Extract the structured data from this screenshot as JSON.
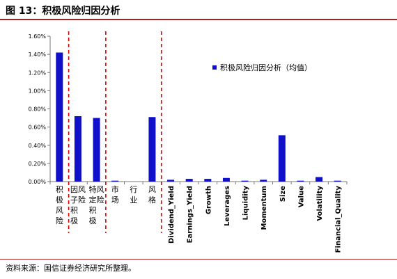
{
  "header": {
    "title": "图 13：积极风险归因分析"
  },
  "source": "资料来源：国信证券经济研究所整理。",
  "chart_data": {
    "type": "bar",
    "title": "",
    "xlabel": "",
    "ylabel": "",
    "ylim": [
      0,
      0.016
    ],
    "yticks": [
      "0.00%",
      "0.20%",
      "0.40%",
      "0.60%",
      "0.80%",
      "1.00%",
      "1.20%",
      "1.40%",
      "1.60%"
    ],
    "grid": false,
    "legend_position": "upper-right",
    "categories": [
      "积极风险",
      "因子积极风险",
      "特定积极风险",
      "市场",
      "行业",
      "风格",
      "Dividend_Yield",
      "Earnings_Yield",
      "Growth",
      "Leverages",
      "Liquidity",
      "Momentum",
      "Size",
      "Value",
      "Volatility",
      "Financial_Quality"
    ],
    "vertical_categories": [
      "积极风险",
      "因子积极风险",
      "特定积极风险",
      "市场",
      "行业",
      "风格"
    ],
    "series": [
      {
        "name": "积极风险归因分析（均值）",
        "color": "#1010c8",
        "values": [
          0.0142,
          0.0072,
          0.007,
          0.0001,
          0.0,
          0.0071,
          0.0002,
          0.0003,
          0.0003,
          0.0004,
          0.0001,
          0.0002,
          0.0051,
          0.0001,
          0.0005,
          0.0001
        ]
      }
    ],
    "separators_after": [
      "积极风险",
      "特定积极风险",
      "风格"
    ],
    "separator_color": "#e00000"
  }
}
